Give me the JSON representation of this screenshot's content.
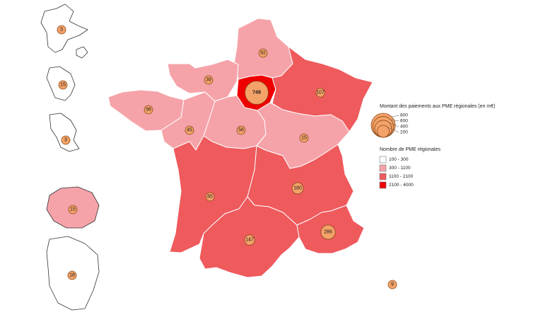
{
  "colors": {
    "class_1": "#ffffff",
    "class_2": "#f5a3a9",
    "class_3": "#ef5a5d",
    "class_4": "#ee0000",
    "bubble": "#f4a268"
  },
  "regions": [
    {
      "id": "hauts-de-france",
      "value": "92",
      "class": "class_2"
    },
    {
      "id": "normandie",
      "value": "39",
      "class": "class_2"
    },
    {
      "id": "ile-de-france",
      "value": "748",
      "class": "class_4"
    },
    {
      "id": "grand-est",
      "value": "107",
      "class": "class_3"
    },
    {
      "id": "bretagne",
      "value": "98",
      "class": "class_2"
    },
    {
      "id": "pays-de-la-loire",
      "value": "45",
      "class": "class_2"
    },
    {
      "id": "centre-val-de-loire",
      "value": "56",
      "class": "class_2"
    },
    {
      "id": "bourgogne-franche-comte",
      "value": "15",
      "class": "class_2"
    },
    {
      "id": "nouvelle-aquitaine",
      "value": "85",
      "class": "class_3"
    },
    {
      "id": "auvergne-rhone-alpes",
      "value": "180",
      "class": "class_3"
    },
    {
      "id": "occitanie",
      "value": "147",
      "class": "class_3"
    },
    {
      "id": "provence-alpes-cote-d-azur",
      "value": "286",
      "class": "class_3"
    },
    {
      "id": "corse",
      "value": "9",
      "class": "class_1"
    },
    {
      "id": "guadeloupe",
      "value": "3",
      "class": "class_1"
    },
    {
      "id": "martinique",
      "value": "15",
      "class": "class_1"
    },
    {
      "id": "mayotte",
      "value": "3",
      "class": "class_1"
    },
    {
      "id": "la-reunion",
      "value": "15",
      "class": "class_2"
    },
    {
      "id": "guyane",
      "value": "18",
      "class": "class_1"
    }
  ],
  "legend": {
    "size_title": "Montant des paiements aux PME régionales (en m€)",
    "size_values": [
      "800",
      "600",
      "400",
      "200"
    ],
    "color_title": "Nombre de PME régionales",
    "color_classes": [
      "100 - 300",
      "300 - 1100",
      "1100 - 2100",
      "2100 - 4000"
    ]
  }
}
